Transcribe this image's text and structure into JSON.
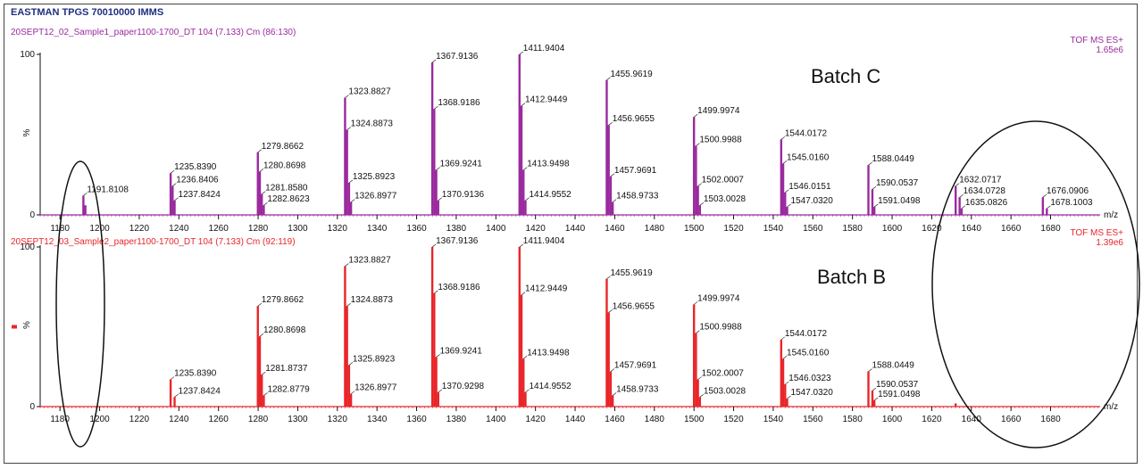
{
  "main_title": "EASTMAN TPGS 70010000 IMMS",
  "colors": {
    "top": "#9a2a9e",
    "bottom": "#e8262a",
    "title": "#1f2f80",
    "ink": "#111111"
  },
  "chart_data": [
    {
      "type": "bar",
      "subtitle": "20SEPT12_02_Sample1_paper1100-1700_DT 104 (7.133) Cm (86:130)",
      "mode": "TOF MS ES+",
      "intensity": "1.65e6",
      "batch_label": "Batch C",
      "y_axis_label": "%",
      "x_unit": "m/z",
      "xlim": [
        1170,
        1705
      ],
      "ylim": [
        0,
        100
      ],
      "y_ticks": [
        0,
        100
      ],
      "x_ticks": [
        1180,
        1200,
        1220,
        1240,
        1260,
        1280,
        1300,
        1320,
        1340,
        1360,
        1380,
        1400,
        1420,
        1440,
        1460,
        1480,
        1500,
        1520,
        1540,
        1560,
        1580,
        1600,
        1620,
        1640,
        1660,
        1680
      ],
      "peaks": [
        {
          "x": 1191.81,
          "y": 12
        },
        {
          "x": 1192.81,
          "y": 6
        },
        {
          "x": 1235.839,
          "y": 26
        },
        {
          "x": 1236.8406,
          "y": 18
        },
        {
          "x": 1237.8424,
          "y": 9
        },
        {
          "x": 1279.8662,
          "y": 39
        },
        {
          "x": 1280.8698,
          "y": 27
        },
        {
          "x": 1281.858,
          "y": 13
        },
        {
          "x": 1282.8623,
          "y": 6
        },
        {
          "x": 1323.8827,
          "y": 73
        },
        {
          "x": 1324.8873,
          "y": 53
        },
        {
          "x": 1325.8923,
          "y": 20
        },
        {
          "x": 1326.8977,
          "y": 8
        },
        {
          "x": 1367.9136,
          "y": 95
        },
        {
          "x": 1368.9186,
          "y": 66
        },
        {
          "x": 1369.9241,
          "y": 28
        },
        {
          "x": 1370.9136,
          "y": 9
        },
        {
          "x": 1411.9404,
          "y": 100
        },
        {
          "x": 1412.9449,
          "y": 68
        },
        {
          "x": 1413.9498,
          "y": 28
        },
        {
          "x": 1414.9552,
          "y": 9
        },
        {
          "x": 1455.9619,
          "y": 84
        },
        {
          "x": 1456.9655,
          "y": 56
        },
        {
          "x": 1457.9691,
          "y": 24
        },
        {
          "x": 1458.9733,
          "y": 8
        },
        {
          "x": 1499.9974,
          "y": 61
        },
        {
          "x": 1500.9988,
          "y": 43
        },
        {
          "x": 1502.0007,
          "y": 18
        },
        {
          "x": 1503.0028,
          "y": 6
        },
        {
          "x": 1544.0172,
          "y": 47
        },
        {
          "x": 1545.016,
          "y": 32
        },
        {
          "x": 1546.0151,
          "y": 14
        },
        {
          "x": 1547.032,
          "y": 5
        },
        {
          "x": 1588.0449,
          "y": 31
        },
        {
          "x": 1590.0537,
          "y": 16
        },
        {
          "x": 1591.0498,
          "y": 5
        },
        {
          "x": 1632.0717,
          "y": 18
        },
        {
          "x": 1634.0728,
          "y": 11
        },
        {
          "x": 1635.0826,
          "y": 4
        },
        {
          "x": 1676.0906,
          "y": 11
        },
        {
          "x": 1678.1003,
          "y": 4
        }
      ],
      "labels": [
        {
          "text": "1191.8108",
          "x": 1191.81,
          "y": 12
        },
        {
          "text": "1235.8390",
          "x": 1235.839,
          "y": 26
        },
        {
          "text": "1236.8406",
          "x": 1236.8406,
          "y": 18
        },
        {
          "text": "1237.8424",
          "x": 1237.8424,
          "y": 9
        },
        {
          "text": "1279.8662",
          "x": 1279.8662,
          "y": 39
        },
        {
          "text": "1280.8698",
          "x": 1280.8698,
          "y": 27
        },
        {
          "text": "1281.8580",
          "x": 1281.858,
          "y": 13
        },
        {
          "text": "1282.8623",
          "x": 1282.8623,
          "y": 6
        },
        {
          "text": "1323.8827",
          "x": 1323.8827,
          "y": 73
        },
        {
          "text": "1324.8873",
          "x": 1324.8873,
          "y": 53
        },
        {
          "text": "1325.8923",
          "x": 1325.8923,
          "y": 20
        },
        {
          "text": "1326.8977",
          "x": 1326.8977,
          "y": 8
        },
        {
          "text": "1367.9136",
          "x": 1367.9136,
          "y": 95
        },
        {
          "text": "1368.9186",
          "x": 1368.9186,
          "y": 66
        },
        {
          "text": "1369.9241",
          "x": 1369.9241,
          "y": 28
        },
        {
          "text": "1370.9136",
          "x": 1370.9136,
          "y": 9
        },
        {
          "text": "1411.9404",
          "x": 1411.9404,
          "y": 100
        },
        {
          "text": "1412.9449",
          "x": 1412.9449,
          "y": 68
        },
        {
          "text": "1413.9498",
          "x": 1413.9498,
          "y": 28
        },
        {
          "text": "1414.9552",
          "x": 1414.9552,
          "y": 9
        },
        {
          "text": "1455.9619",
          "x": 1455.9619,
          "y": 84
        },
        {
          "text": "1456.9655",
          "x": 1456.9655,
          "y": 56
        },
        {
          "text": "1457.9691",
          "x": 1457.9691,
          "y": 24
        },
        {
          "text": "1458.9733",
          "x": 1458.9733,
          "y": 8
        },
        {
          "text": "1499.9974",
          "x": 1499.9974,
          "y": 61
        },
        {
          "text": "1500.9988",
          "x": 1500.9988,
          "y": 43
        },
        {
          "text": "1502.0007",
          "x": 1502.0007,
          "y": 18
        },
        {
          "text": "1503.0028",
          "x": 1503.0028,
          "y": 6
        },
        {
          "text": "1544.0172",
          "x": 1544.0172,
          "y": 47
        },
        {
          "text": "1545.0160",
          "x": 1545.016,
          "y": 32
        },
        {
          "text": "1546.0151",
          "x": 1546.0151,
          "y": 14
        },
        {
          "text": "1547.0320",
          "x": 1547.032,
          "y": 5
        },
        {
          "text": "1588.0449",
          "x": 1588.0449,
          "y": 31
        },
        {
          "text": "1590.0537",
          "x": 1590.0537,
          "y": 16
        },
        {
          "text": "1591.0498",
          "x": 1591.0498,
          "y": 5
        },
        {
          "text": "1632.0717",
          "x": 1632.0717,
          "y": 18
        },
        {
          "text": "1634.0728",
          "x": 1634.0728,
          "y": 11
        },
        {
          "text": "1635.0826",
          "x": 1635.0826,
          "y": 4
        },
        {
          "text": "1676.0906",
          "x": 1676.0906,
          "y": 11
        },
        {
          "text": "1678.1003",
          "x": 1678.1003,
          "y": 4
        }
      ]
    },
    {
      "type": "bar",
      "subtitle": "20SEPT12_03_Sample2_paper1100-1700_DT 104 (7.133) Cm (92:119)",
      "mode": "TOF MS ES+",
      "intensity": "1.39e6",
      "batch_label": "Batch B",
      "y_axis_label": "%",
      "x_unit": "m/z",
      "xlim": [
        1170,
        1705
      ],
      "ylim": [
        0,
        100
      ],
      "y_ticks": [
        0,
        100
      ],
      "x_ticks": [
        1180,
        1200,
        1220,
        1240,
        1260,
        1280,
        1300,
        1320,
        1340,
        1360,
        1380,
        1400,
        1420,
        1440,
        1460,
        1480,
        1500,
        1520,
        1540,
        1560,
        1580,
        1600,
        1620,
        1640,
        1660,
        1680
      ],
      "peaks": [
        {
          "x": 1235.839,
          "y": 17
        },
        {
          "x": 1237.8424,
          "y": 6
        },
        {
          "x": 1279.8662,
          "y": 63
        },
        {
          "x": 1280.8698,
          "y": 44
        },
        {
          "x": 1281.8737,
          "y": 20
        },
        {
          "x": 1282.8779,
          "y": 7
        },
        {
          "x": 1323.8827,
          "y": 88
        },
        {
          "x": 1324.8873,
          "y": 63
        },
        {
          "x": 1325.8923,
          "y": 26
        },
        {
          "x": 1326.8977,
          "y": 8
        },
        {
          "x": 1367.9136,
          "y": 100
        },
        {
          "x": 1368.9186,
          "y": 71
        },
        {
          "x": 1369.9241,
          "y": 31
        },
        {
          "x": 1370.9298,
          "y": 9
        },
        {
          "x": 1411.9404,
          "y": 100
        },
        {
          "x": 1412.9449,
          "y": 70
        },
        {
          "x": 1413.9498,
          "y": 30
        },
        {
          "x": 1414.9552,
          "y": 9
        },
        {
          "x": 1455.9619,
          "y": 80
        },
        {
          "x": 1456.9655,
          "y": 59
        },
        {
          "x": 1457.9691,
          "y": 22
        },
        {
          "x": 1458.9733,
          "y": 7
        },
        {
          "x": 1499.9974,
          "y": 64
        },
        {
          "x": 1500.9988,
          "y": 46
        },
        {
          "x": 1502.0007,
          "y": 17
        },
        {
          "x": 1503.0028,
          "y": 6
        },
        {
          "x": 1544.0172,
          "y": 42
        },
        {
          "x": 1545.016,
          "y": 30
        },
        {
          "x": 1546.0323,
          "y": 14
        },
        {
          "x": 1547.032,
          "y": 5
        },
        {
          "x": 1588.0449,
          "y": 22
        },
        {
          "x": 1590.0537,
          "y": 10
        },
        {
          "x": 1591.0498,
          "y": 4
        },
        {
          "x": 1632.07,
          "y": 2
        }
      ],
      "labels": [
        {
          "text": "1235.8390",
          "x": 1235.839,
          "y": 17
        },
        {
          "text": "1237.8424",
          "x": 1237.8424,
          "y": 6
        },
        {
          "text": "1279.8662",
          "x": 1279.8662,
          "y": 63
        },
        {
          "text": "1280.8698",
          "x": 1280.8698,
          "y": 44
        },
        {
          "text": "1281.8737",
          "x": 1281.8737,
          "y": 20
        },
        {
          "text": "1282.8779",
          "x": 1282.8779,
          "y": 7
        },
        {
          "text": "1323.8827",
          "x": 1323.8827,
          "y": 88
        },
        {
          "text": "1324.8873",
          "x": 1324.8873,
          "y": 63
        },
        {
          "text": "1325.8923",
          "x": 1325.8923,
          "y": 26
        },
        {
          "text": "1326.8977",
          "x": 1326.8977,
          "y": 8
        },
        {
          "text": "1367.9136",
          "x": 1367.9136,
          "y": 100
        },
        {
          "text": "1368.9186",
          "x": 1368.9186,
          "y": 71
        },
        {
          "text": "1369.9241",
          "x": 1369.9241,
          "y": 31
        },
        {
          "text": "1370.9298",
          "x": 1370.9298,
          "y": 9
        },
        {
          "text": "1411.9404",
          "x": 1411.9404,
          "y": 100
        },
        {
          "text": "1412.9449",
          "x": 1412.9449,
          "y": 70
        },
        {
          "text": "1413.9498",
          "x": 1413.9498,
          "y": 30
        },
        {
          "text": "1414.9552",
          "x": 1414.9552,
          "y": 9
        },
        {
          "text": "1455.9619",
          "x": 1455.9619,
          "y": 80
        },
        {
          "text": "1456.9655",
          "x": 1456.9655,
          "y": 59
        },
        {
          "text": "1457.9691",
          "x": 1457.9691,
          "y": 22
        },
        {
          "text": "1458.9733",
          "x": 1458.9733,
          "y": 7
        },
        {
          "text": "1499.9974",
          "x": 1499.9974,
          "y": 64
        },
        {
          "text": "1500.9988",
          "x": 1500.9988,
          "y": 46
        },
        {
          "text": "1502.0007",
          "x": 1502.0007,
          "y": 17
        },
        {
          "text": "1503.0028",
          "x": 1503.0028,
          "y": 6
        },
        {
          "text": "1544.0172",
          "x": 1544.0172,
          "y": 42
        },
        {
          "text": "1545.0160",
          "x": 1545.016,
          "y": 30
        },
        {
          "text": "1546.0323",
          "x": 1546.0323,
          "y": 14
        },
        {
          "text": "1547.0320",
          "x": 1547.032,
          "y": 5
        },
        {
          "text": "1588.0449",
          "x": 1588.0449,
          "y": 22
        },
        {
          "text": "1590.0537",
          "x": 1590.0537,
          "y": 10
        },
        {
          "text": "1591.0498",
          "x": 1591.0498,
          "y": 4
        }
      ]
    }
  ]
}
